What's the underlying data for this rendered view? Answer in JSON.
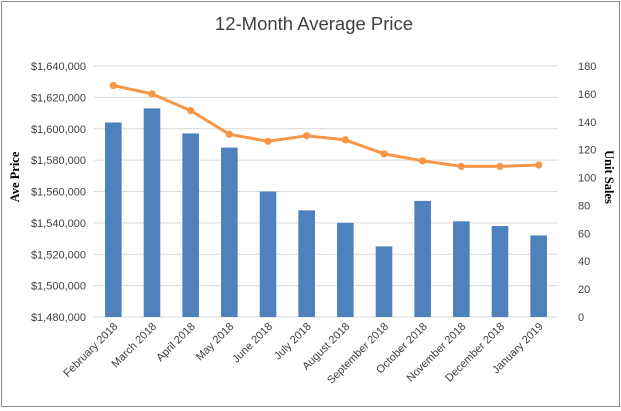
{
  "chart_data": {
    "type": "bar+line",
    "title": "12-Month Average Price",
    "ylabel": "Ave Price",
    "y2label": "Unit Sales",
    "ylim": [
      1480000,
      1640000
    ],
    "y2lim": [
      0,
      180
    ],
    "yticks": [
      "$1,480,000",
      "$1,500,000",
      "$1,520,000",
      "$1,540,000",
      "$1,560,000",
      "$1,580,000",
      "$1,600,000",
      "$1,620,000",
      "$1,640,000"
    ],
    "y2ticks": [
      "0",
      "20",
      "40",
      "60",
      "80",
      "100",
      "120",
      "140",
      "160",
      "180"
    ],
    "categories": [
      "February 2018",
      "March 2018",
      "April 2018",
      "May 2018",
      "June 2018",
      "July 2018",
      "August 2018",
      "September 2018",
      "October 2018",
      "November 2018",
      "December 2018",
      "January 2019"
    ],
    "grid": true,
    "legend": "none",
    "series": [
      {
        "type": "bar",
        "axis": "left",
        "color": "#4f81bd",
        "values": [
          1604000,
          1613000,
          1597000,
          1588000,
          1560000,
          1548000,
          1540000,
          1525000,
          1554000,
          1541000,
          1538000,
          1532000
        ]
      },
      {
        "type": "line",
        "axis": "right",
        "color": "#f79646",
        "values": [
          166,
          160,
          148,
          131,
          126,
          130,
          127,
          117,
          112,
          108,
          108,
          109
        ]
      }
    ]
  }
}
